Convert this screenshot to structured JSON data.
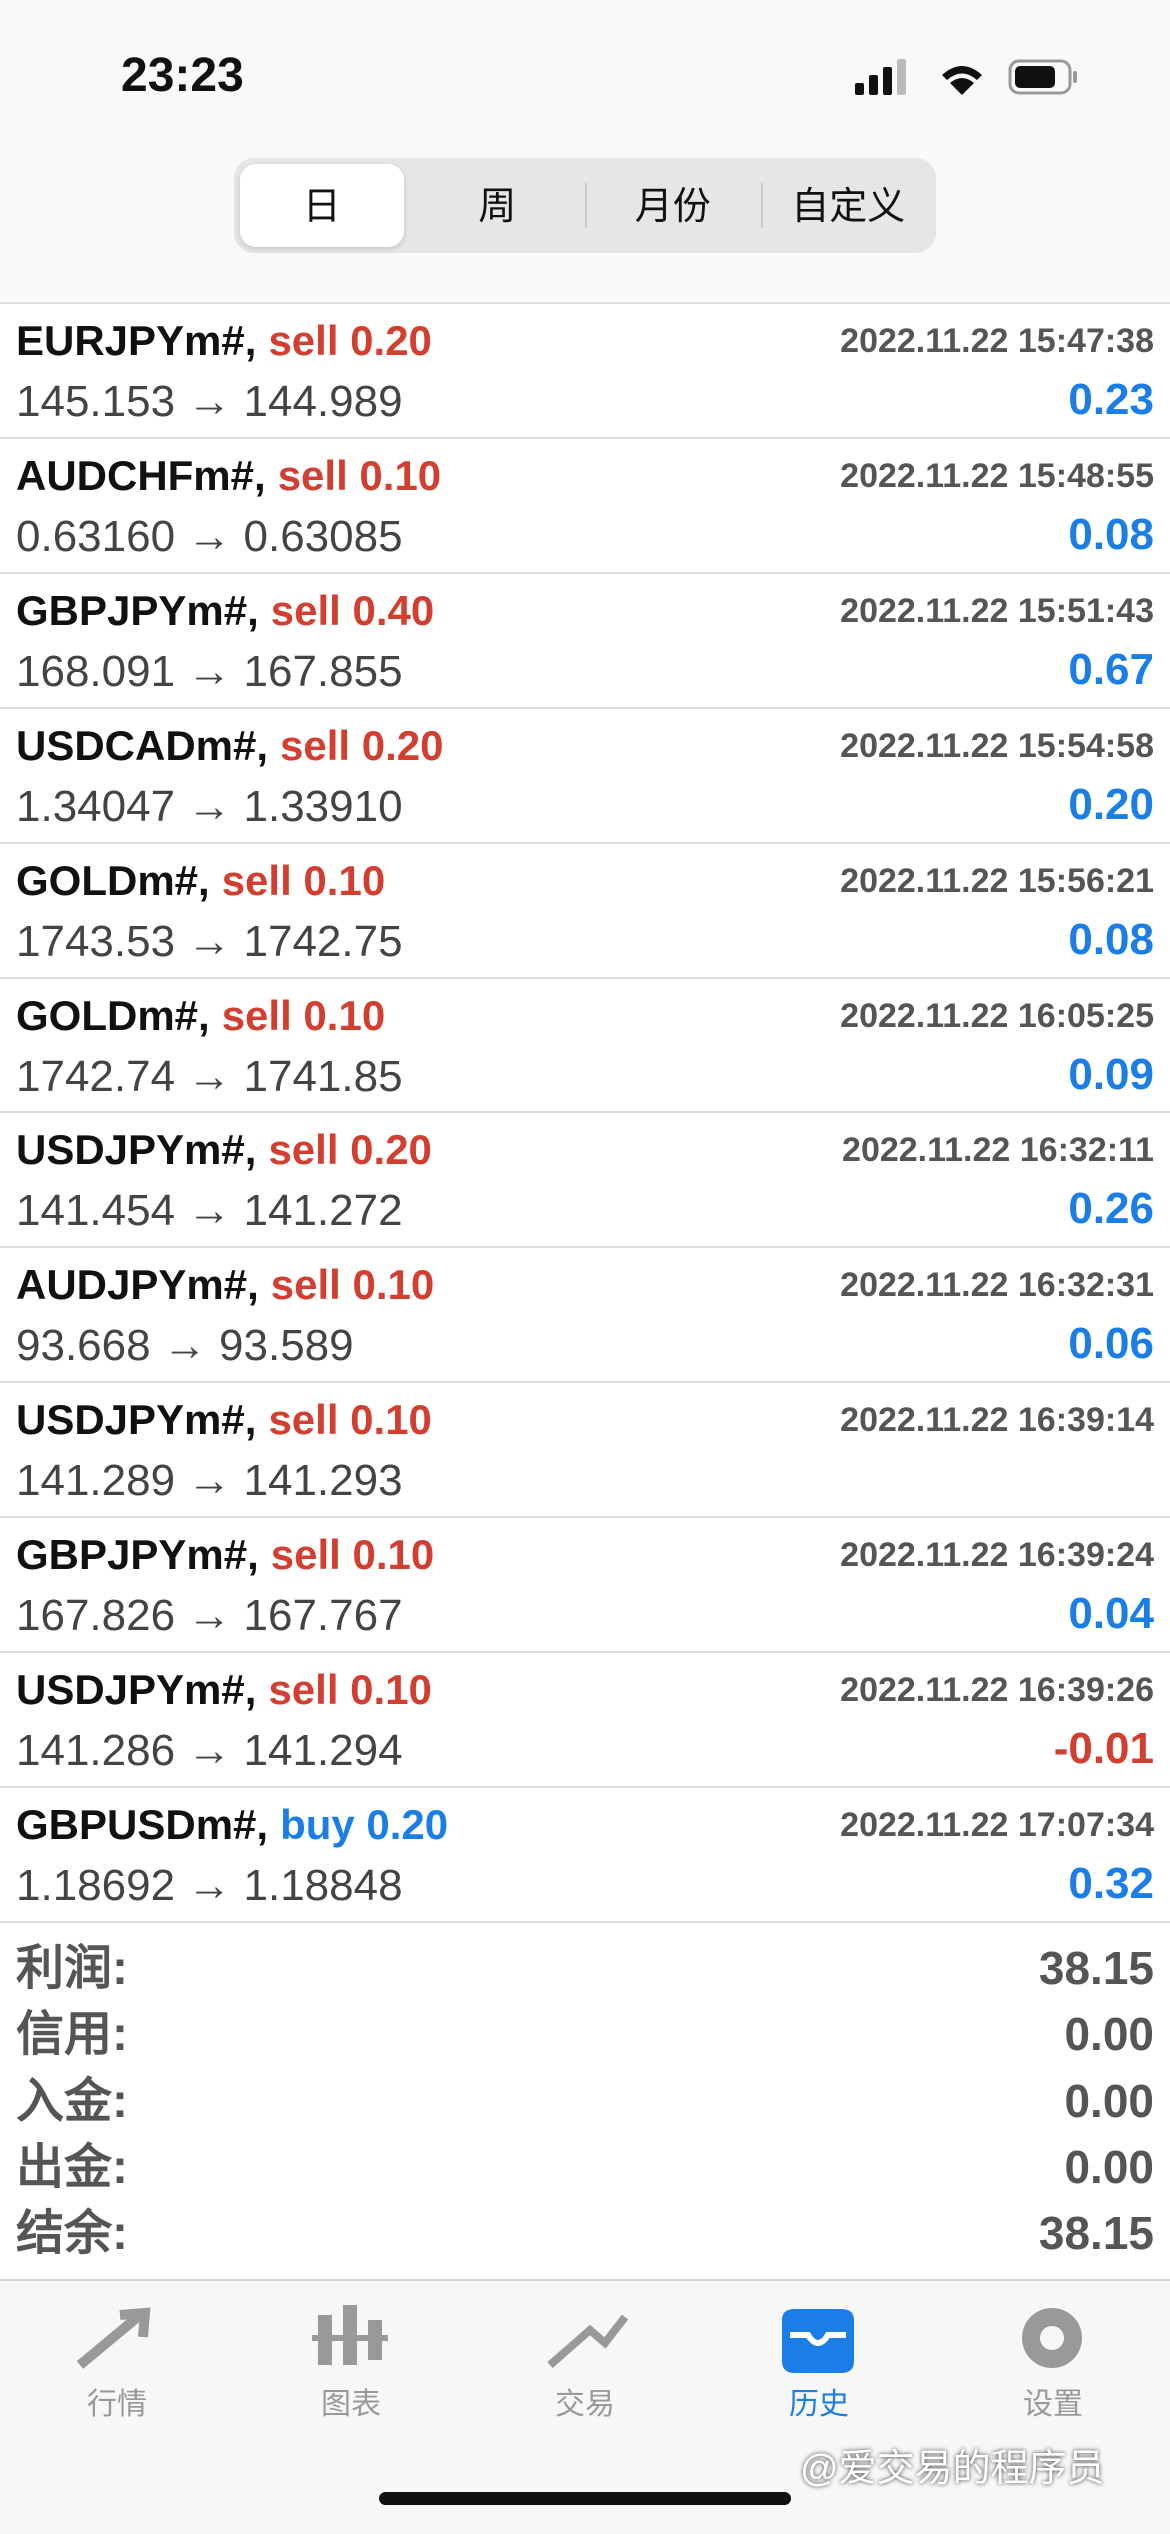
{
  "status_bar": {
    "time": "23:23"
  },
  "period_tabs": {
    "tabs": [
      "日",
      "周",
      "月份",
      "自定义"
    ],
    "active": 0
  },
  "trades": [
    {
      "symbol": "EURJPYm#,",
      "side": "sell 0.20",
      "side_color": "#d23f31",
      "time": "2022.11.22 15:47:38",
      "prices": "145.153 → 144.989",
      "profit": "0.23",
      "profit_color": "#1a7ee6"
    },
    {
      "symbol": "AUDCHFm#,",
      "side": "sell 0.10",
      "side_color": "#d23f31",
      "time": "2022.11.22 15:48:55",
      "prices": "0.63160 → 0.63085",
      "profit": "0.08",
      "profit_color": "#1a7ee6"
    },
    {
      "symbol": "GBPJPYm#,",
      "side": "sell 0.40",
      "side_color": "#d23f31",
      "time": "2022.11.22 15:51:43",
      "prices": "168.091 → 167.855",
      "profit": "0.67",
      "profit_color": "#1a7ee6"
    },
    {
      "symbol": "USDCADm#,",
      "side": "sell 0.20",
      "side_color": "#d23f31",
      "time": "2022.11.22 15:54:58",
      "prices": "1.34047 → 1.33910",
      "profit": "0.20",
      "profit_color": "#1a7ee6"
    },
    {
      "symbol": "GOLDm#,",
      "side": "sell 0.10",
      "side_color": "#d23f31",
      "time": "2022.11.22 15:56:21",
      "prices": "1743.53 → 1742.75",
      "profit": "0.08",
      "profit_color": "#1a7ee6"
    },
    {
      "symbol": "GOLDm#,",
      "side": "sell 0.10",
      "side_color": "#d23f31",
      "time": "2022.11.22 16:05:25",
      "prices": "1742.74 → 1741.85",
      "profit": "0.09",
      "profit_color": "#1a7ee6"
    },
    {
      "symbol": "USDJPYm#,",
      "side": "sell 0.20",
      "side_color": "#d23f31",
      "time": "2022.11.22 16:32:11",
      "prices": "141.454 → 141.272",
      "profit": "0.26",
      "profit_color": "#1a7ee6"
    },
    {
      "symbol": "AUDJPYm#,",
      "side": "sell 0.10",
      "side_color": "#d23f31",
      "time": "2022.11.22 16:32:31",
      "prices": "93.668 → 93.589",
      "profit": "0.06",
      "profit_color": "#1a7ee6"
    },
    {
      "symbol": "USDJPYm#,",
      "side": "sell 0.10",
      "side_color": "#d23f31",
      "time": "2022.11.22 16:39:14",
      "prices": "141.289 → 141.293",
      "profit": null,
      "profit_color": "#1a7ee6"
    },
    {
      "symbol": "GBPJPYm#,",
      "side": "sell 0.10",
      "side_color": "#d23f31",
      "time": "2022.11.22 16:39:24",
      "prices": "167.826 → 167.767",
      "profit": "0.04",
      "profit_color": "#1a7ee6"
    },
    {
      "symbol": "USDJPYm#,",
      "side": "sell 0.10",
      "side_color": "#d23f31",
      "time": "2022.11.22 16:39:26",
      "prices": "141.286 → 141.294",
      "profit": "-0.01",
      "profit_color": "#d23f31"
    },
    {
      "symbol": "GBPUSDm#,",
      "side": "buy 0.20",
      "side_color": "#1a7ee6",
      "time": "2022.11.22 17:07:34",
      "prices": "1.18692 → 1.18848",
      "profit": "0.32",
      "profit_color": "#1a7ee6"
    }
  ],
  "summary": [
    {
      "label": "利润:",
      "value": "38.15"
    },
    {
      "label": "信用:",
      "value": "0.00"
    },
    {
      "label": "入金:",
      "value": "0.00"
    },
    {
      "label": "出金:",
      "value": "0.00"
    },
    {
      "label": "结余:",
      "value": "38.15"
    }
  ],
  "tab_bar": {
    "items": [
      "行情",
      "图表",
      "交易",
      "历史",
      "设置"
    ],
    "active": 3
  },
  "watermark": "@爱交易的程序员"
}
